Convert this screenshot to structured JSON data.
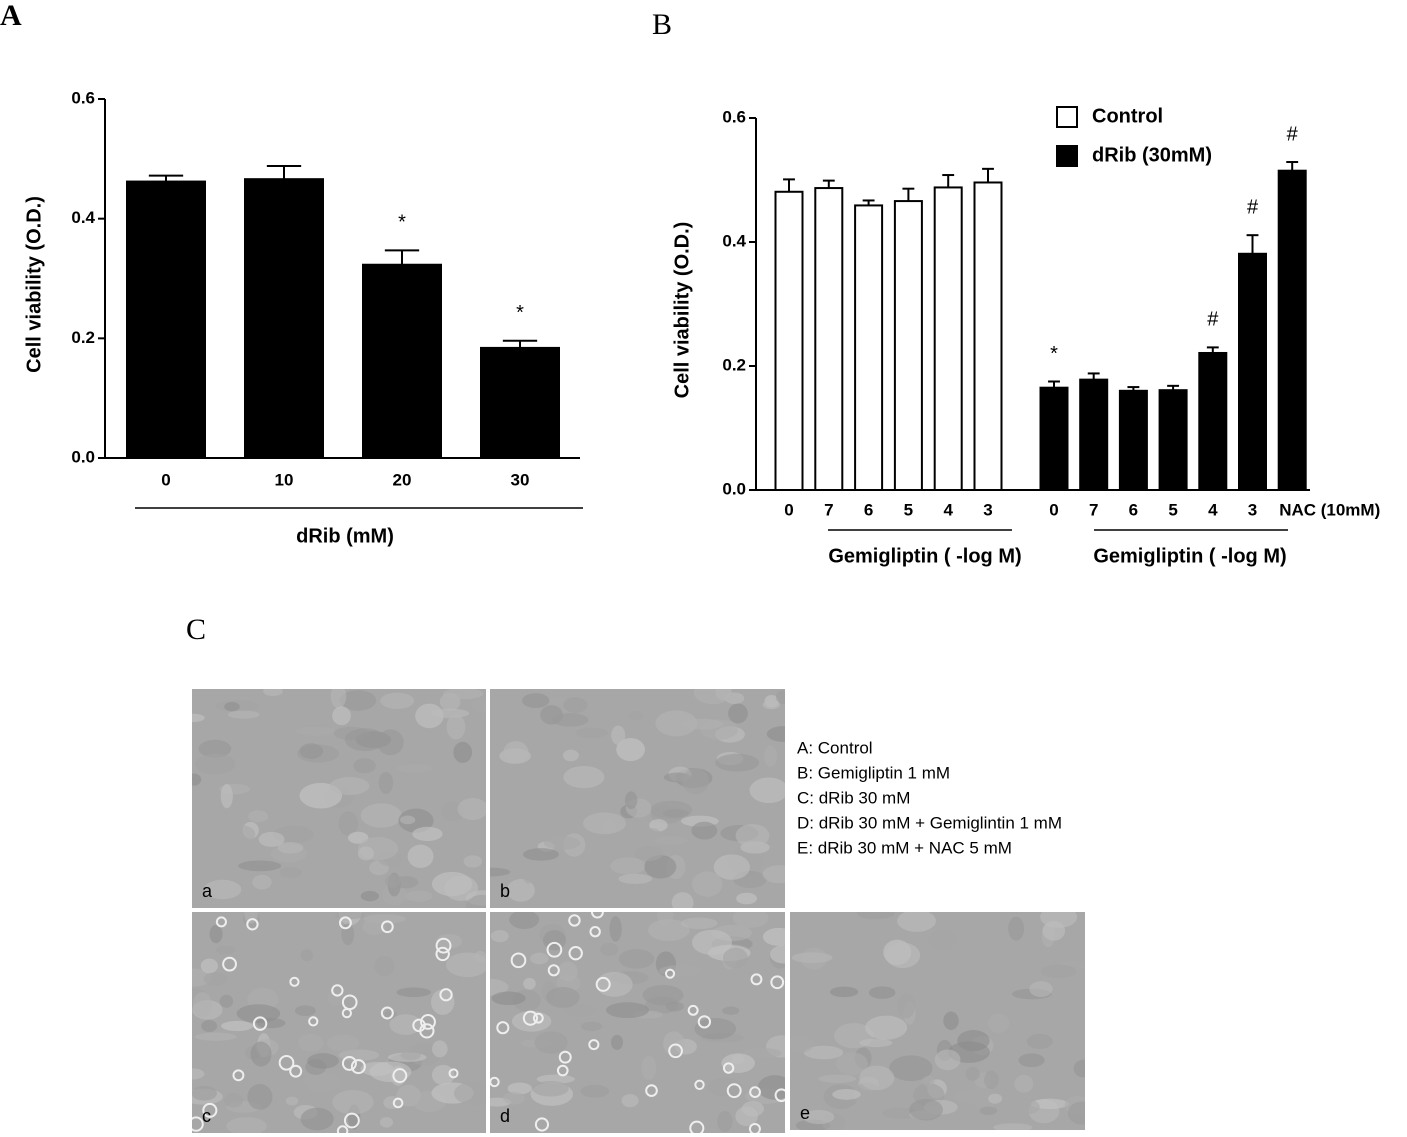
{
  "chart_data": [
    {
      "type": "bar",
      "panel_label": "A",
      "ylabel": "Cell viability (O.D.)",
      "xlabel": "dRib (mM)",
      "categories": [
        "0",
        "10",
        "20",
        "30"
      ],
      "values": [
        0.462,
        0.466,
        0.323,
        0.184
      ],
      "errors": [
        0.01,
        0.022,
        0.024,
        0.012
      ],
      "annotations": [
        null,
        null,
        "*",
        "*"
      ],
      "color": "#000000",
      "ylim": [
        0,
        0.6
      ],
      "yticks": [
        {
          "value": 0,
          "label": "0.0"
        },
        0.2,
        0.4,
        0.6
      ]
    },
    {
      "type": "bar",
      "panel_label": "B",
      "ylabel": "Cell viability (O.D.)",
      "categories": [
        "0",
        "7",
        "6",
        "5",
        "4",
        "3",
        "0",
        "7",
        "6",
        "5",
        "4",
        "3",
        "NAC (10mM)"
      ],
      "group_labels": [
        "Gemigliptin ( -log M)",
        "Gemigliptin ( -log M)"
      ],
      "series": [
        {
          "name": "Control",
          "color": "#ffffff",
          "values": [
            0.481,
            0.487,
            0.459,
            0.466,
            0.488,
            0.496,
            null,
            null,
            null,
            null,
            null,
            null,
            null
          ],
          "errors": [
            0.02,
            0.012,
            0.008,
            0.02,
            0.02,
            0.022,
            null,
            null,
            null,
            null,
            null,
            null,
            null
          ]
        },
        {
          "name": "dRib (30mM)",
          "color": "#000000",
          "values": [
            null,
            null,
            null,
            null,
            null,
            null,
            0.165,
            0.178,
            0.16,
            0.161,
            0.221,
            0.381,
            0.515
          ],
          "errors": [
            null,
            null,
            null,
            null,
            null,
            null,
            0.01,
            0.01,
            0.006,
            0.007,
            0.009,
            0.03,
            0.014
          ],
          "annotations": [
            null,
            null,
            null,
            null,
            null,
            null,
            "*",
            null,
            null,
            null,
            "#",
            "#",
            "#"
          ]
        }
      ],
      "legend": "top-right",
      "ylim": [
        0,
        0.6
      ],
      "yticks": [
        {
          "value": 0,
          "label": "0.0"
        },
        0.2,
        0.4,
        0.6
      ]
    }
  ],
  "panel_c": {
    "label": "C",
    "images": [
      "a",
      "b",
      "c",
      "d",
      "e"
    ],
    "legend": [
      "A: Control",
      "B: Gemigliptin 1 mM",
      "C: dRib 30 mM",
      "D: dRib 30 mM + Gemiglintin 1 mM",
      "E: dRib 30 mM + NAC 5 mM"
    ]
  }
}
